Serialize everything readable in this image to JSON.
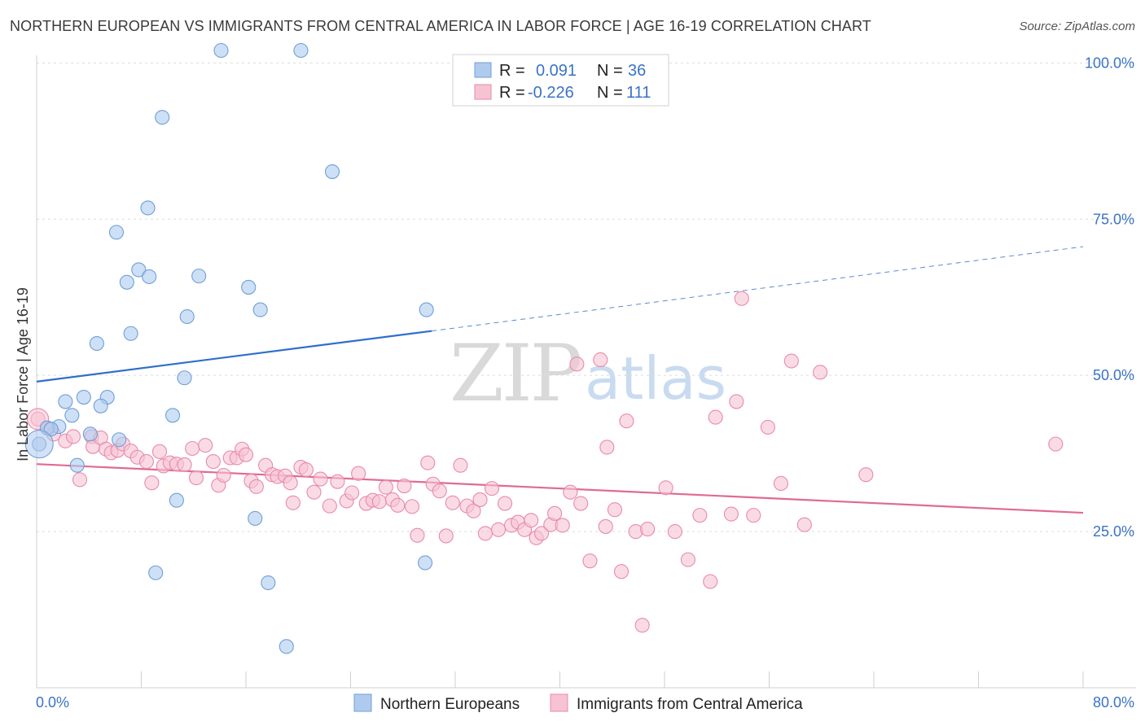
{
  "header": {
    "title": "NORTHERN EUROPEAN VS IMMIGRANTS FROM CENTRAL AMERICA IN LABOR FORCE | AGE 16-19 CORRELATION CHART",
    "source": "Source: ZipAtlas.com"
  },
  "watermark": {
    "zip": "ZIP",
    "atlas": "atlas"
  },
  "legend_box": {
    "r_label": "R =",
    "n_label": "N =",
    "rows": [
      {
        "r": "0.091",
        "n": "36"
      },
      {
        "r": "-0.226",
        "n": "111"
      }
    ]
  },
  "bottom_legend": {
    "series1": "Northern Europeans",
    "series2": "Immigrants from Central America"
  },
  "colors": {
    "blue_fill": "#aecbee",
    "blue_stroke": "#6f9fd8",
    "blue_line": "#2f6fcc",
    "pink_fill": "#f7c3d3",
    "pink_stroke": "#e98aa9",
    "pink_line": "#e06a93",
    "axis_text": "#3b73c4"
  },
  "chart_data": {
    "type": "scatter",
    "title": "NORTHERN EUROPEAN VS IMMIGRANTS FROM CENTRAL AMERICA IN LABOR FORCE | AGE 16-19 CORRELATION CHART",
    "xlabel": "",
    "ylabel": "In Labor Force | Age 16-19",
    "xlim": [
      0,
      80
    ],
    "ylim": [
      0,
      102
    ],
    "x_tick_labels": [
      "0.0%",
      "80.0%"
    ],
    "y_tick_labels": [
      "100.0%",
      "75.0%",
      "50.0%",
      "25.0%"
    ],
    "y_tick_values": [
      100,
      75,
      50,
      25
    ],
    "grid": true,
    "legend_position": "top-center",
    "series": [
      {
        "name": "Northern Europeans",
        "r": 0.091,
        "n": 36,
        "trend": {
          "x0": 0,
          "y0": 49.0,
          "x1": 30.2,
          "y1": 57.1,
          "dash_x1": 80,
          "dash_y1": 70.6
        },
        "points": [
          [
            14.1,
            102.0
          ],
          [
            20.2,
            102.0
          ],
          [
            9.6,
            91.3
          ],
          [
            22.6,
            82.6
          ],
          [
            8.5,
            76.8
          ],
          [
            6.1,
            72.9
          ],
          [
            7.8,
            66.9
          ],
          [
            8.6,
            65.8
          ],
          [
            12.4,
            65.9
          ],
          [
            6.9,
            64.9
          ],
          [
            16.2,
            64.1
          ],
          [
            17.1,
            60.5
          ],
          [
            29.8,
            60.5
          ],
          [
            11.5,
            59.4
          ],
          [
            7.2,
            56.7
          ],
          [
            4.6,
            55.1
          ],
          [
            11.3,
            49.6
          ],
          [
            3.6,
            46.5
          ],
          [
            5.4,
            46.5
          ],
          [
            2.2,
            45.8
          ],
          [
            4.9,
            45.1
          ],
          [
            2.7,
            43.6
          ],
          [
            10.4,
            43.6
          ],
          [
            1.7,
            41.8
          ],
          [
            0.8,
            41.6
          ],
          [
            1.1,
            41.4
          ],
          [
            4.1,
            40.6
          ],
          [
            6.3,
            39.7
          ],
          [
            0.2,
            39.0
          ],
          [
            3.1,
            35.6
          ],
          [
            10.7,
            30.0
          ],
          [
            16.7,
            27.1
          ],
          [
            29.7,
            20.0
          ],
          [
            9.1,
            18.4
          ],
          [
            17.7,
            16.8
          ],
          [
            19.1,
            6.6
          ]
        ]
      },
      {
        "name": "Immigrants from Central America",
        "r": -0.226,
        "n": 111,
        "trend": {
          "x0": 0,
          "y0": 35.8,
          "x1": 80,
          "y1": 28.0
        },
        "points": [
          [
            0.1,
            43.0
          ],
          [
            0.9,
            41.5
          ],
          [
            1.3,
            40.6
          ],
          [
            2.2,
            39.5
          ],
          [
            2.8,
            40.2
          ],
          [
            3.3,
            33.3
          ],
          [
            4.2,
            40.2
          ],
          [
            4.3,
            38.6
          ],
          [
            4.9,
            40.0
          ],
          [
            5.3,
            38.2
          ],
          [
            5.7,
            37.6
          ],
          [
            6.2,
            38.0
          ],
          [
            6.6,
            39.0
          ],
          [
            7.2,
            37.9
          ],
          [
            7.7,
            36.9
          ],
          [
            8.4,
            36.2
          ],
          [
            8.8,
            32.8
          ],
          [
            9.4,
            37.8
          ],
          [
            9.7,
            35.5
          ],
          [
            10.2,
            36.0
          ],
          [
            10.7,
            35.8
          ],
          [
            11.3,
            35.7
          ],
          [
            11.9,
            38.3
          ],
          [
            12.2,
            33.6
          ],
          [
            12.9,
            38.8
          ],
          [
            13.5,
            36.2
          ],
          [
            13.9,
            32.4
          ],
          [
            14.3,
            34.0
          ],
          [
            14.8,
            36.8
          ],
          [
            15.3,
            36.8
          ],
          [
            15.7,
            38.2
          ],
          [
            16.0,
            37.3
          ],
          [
            16.4,
            33.1
          ],
          [
            16.8,
            32.2
          ],
          [
            17.5,
            35.6
          ],
          [
            18.0,
            34.1
          ],
          [
            18.4,
            33.8
          ],
          [
            19.0,
            33.9
          ],
          [
            19.4,
            32.8
          ],
          [
            19.6,
            29.6
          ],
          [
            20.2,
            35.3
          ],
          [
            20.6,
            34.9
          ],
          [
            21.2,
            31.3
          ],
          [
            21.7,
            33.4
          ],
          [
            22.4,
            29.1
          ],
          [
            23.0,
            33.0
          ],
          [
            23.7,
            29.9
          ],
          [
            24.1,
            31.2
          ],
          [
            24.6,
            34.3
          ],
          [
            25.2,
            29.5
          ],
          [
            25.7,
            30.0
          ],
          [
            26.2,
            29.8
          ],
          [
            26.7,
            32.1
          ],
          [
            27.2,
            30.1
          ],
          [
            27.6,
            29.2
          ],
          [
            28.1,
            32.3
          ],
          [
            28.7,
            29.0
          ],
          [
            29.1,
            24.4
          ],
          [
            29.9,
            36.0
          ],
          [
            30.3,
            32.6
          ],
          [
            30.8,
            31.5
          ],
          [
            31.3,
            24.3
          ],
          [
            31.8,
            29.6
          ],
          [
            32.4,
            35.6
          ],
          [
            32.9,
            29.1
          ],
          [
            33.4,
            28.3
          ],
          [
            33.9,
            30.1
          ],
          [
            34.3,
            24.7
          ],
          [
            34.8,
            31.9
          ],
          [
            35.3,
            25.3
          ],
          [
            35.8,
            29.5
          ],
          [
            36.3,
            26.0
          ],
          [
            36.8,
            26.5
          ],
          [
            37.3,
            25.3
          ],
          [
            37.8,
            26.8
          ],
          [
            38.2,
            24.0
          ],
          [
            38.6,
            24.7
          ],
          [
            39.3,
            26.1
          ],
          [
            39.6,
            27.9
          ],
          [
            40.2,
            26.0
          ],
          [
            40.8,
            31.3
          ],
          [
            41.3,
            51.8
          ],
          [
            41.6,
            29.5
          ],
          [
            42.3,
            20.3
          ],
          [
            43.1,
            52.5
          ],
          [
            43.5,
            25.8
          ],
          [
            43.6,
            38.5
          ],
          [
            44.2,
            28.5
          ],
          [
            44.7,
            18.6
          ],
          [
            45.1,
            42.7
          ],
          [
            45.8,
            25.0
          ],
          [
            46.3,
            10.0
          ],
          [
            46.7,
            25.4
          ],
          [
            48.1,
            32.0
          ],
          [
            48.8,
            25.0
          ],
          [
            49.8,
            20.5
          ],
          [
            50.7,
            27.6
          ],
          [
            51.5,
            17.0
          ],
          [
            51.9,
            43.3
          ],
          [
            53.1,
            27.8
          ],
          [
            53.5,
            45.8
          ],
          [
            53.9,
            62.3
          ],
          [
            54.8,
            27.6
          ],
          [
            55.9,
            41.7
          ],
          [
            56.9,
            32.7
          ],
          [
            57.7,
            52.3
          ],
          [
            58.7,
            26.1
          ],
          [
            59.9,
            50.5
          ],
          [
            63.4,
            34.1
          ],
          [
            77.9,
            39.0
          ]
        ]
      }
    ]
  }
}
